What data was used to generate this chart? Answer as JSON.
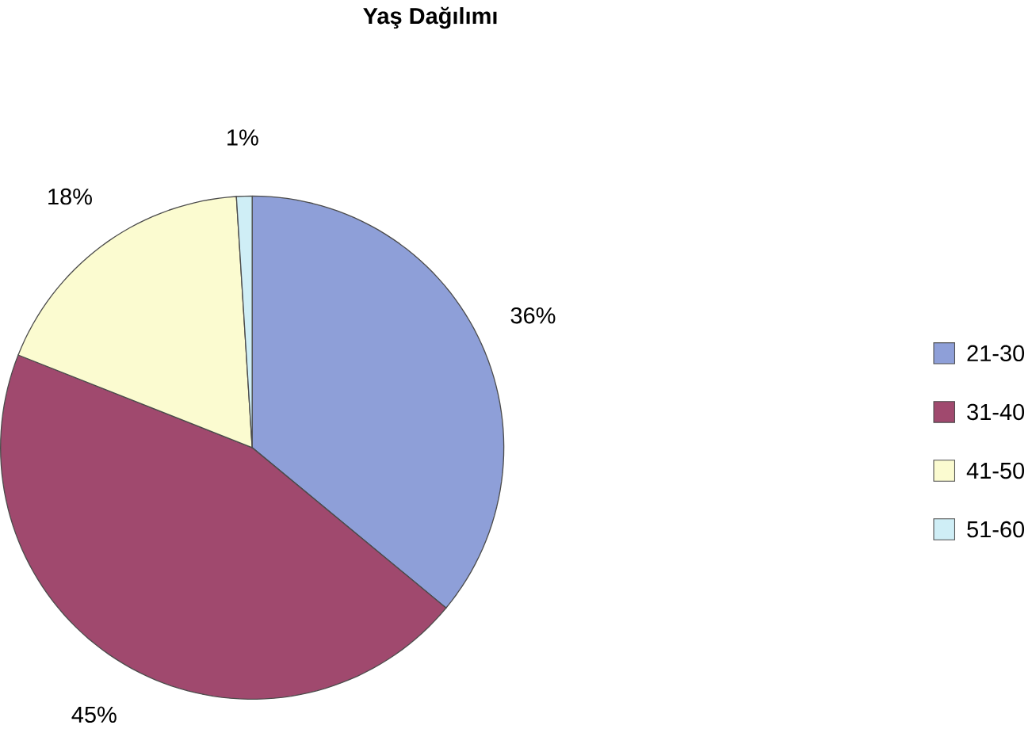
{
  "chart_data": {
    "type": "pie",
    "title": "Yaş Dağılımı",
    "categories": [
      "21-30",
      "31-40",
      "41-50",
      "51-60"
    ],
    "values": [
      36,
      45,
      18,
      1
    ],
    "colors": [
      "#8e9fd8",
      "#a0496e",
      "#fbfbd0",
      "#cfeef6"
    ],
    "value_labels": [
      "36%",
      "45%",
      "18%",
      "1%"
    ],
    "legend": "right"
  }
}
